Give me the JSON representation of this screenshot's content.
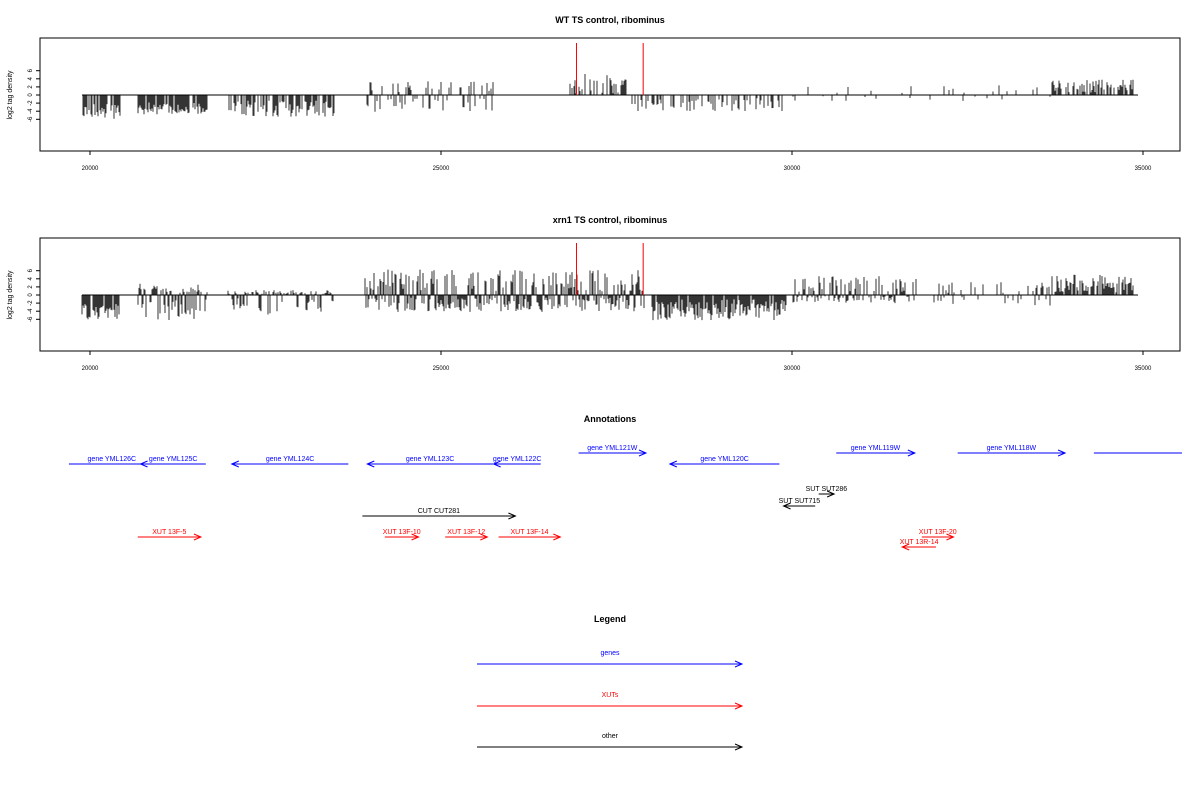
{
  "chart_data": [
    {
      "type": "bar",
      "title": "WT TS control, ribominus",
      "ylabel": "log2 tag density",
      "xlabel": "",
      "xlim": [
        20000,
        35000
      ],
      "ylim": [
        -6,
        6
      ],
      "x_ticks": [
        20000,
        25000,
        30000,
        35000
      ],
      "y_ticks": [
        -6,
        -4,
        -2,
        0,
        2,
        4,
        6
      ],
      "grid": false,
      "highlight_positions": [
        26930,
        27880
      ],
      "highlight_color": "#ff0000",
      "bar_color": "#000000",
      "segments": [
        {
          "x0": 19880,
          "x1": 20440,
          "ymin": -6.0,
          "ymax": -2.0,
          "density": 0.7
        },
        {
          "x0": 20680,
          "x1": 21680,
          "ymin": -4.8,
          "ymax": -1.6,
          "density": 0.9
        },
        {
          "x0": 21960,
          "x1": 23480,
          "ymin": -5.4,
          "ymax": -1.4,
          "density": 0.6
        },
        {
          "x0": 23900,
          "x1": 25780,
          "ymin": -4.2,
          "ymax": 3.4,
          "density": 0.45
        },
        {
          "x0": 26780,
          "x1": 27700,
          "ymin": 0.4,
          "ymax": 5.2,
          "density": 0.5
        },
        {
          "x0": 27720,
          "x1": 29900,
          "ymin": -4.0,
          "ymax": -0.8,
          "density": 0.35
        },
        {
          "x0": 30000,
          "x1": 33700,
          "ymin": -1.8,
          "ymax": 2.6,
          "density": 0.12
        },
        {
          "x0": 33700,
          "x1": 34880,
          "ymin": 0.6,
          "ymax": 3.8,
          "density": 0.55
        }
      ]
    },
    {
      "type": "bar",
      "title": "xrn1 TS control, ribominus",
      "ylabel": "log2 tag density",
      "xlabel": "",
      "xlim": [
        20000,
        35000
      ],
      "ylim": [
        -6,
        6
      ],
      "x_ticks": [
        20000,
        25000,
        30000,
        35000
      ],
      "y_ticks": [
        -6,
        -4,
        -2,
        0,
        2,
        4,
        6
      ],
      "grid": false,
      "highlight_positions": [
        26930,
        27880
      ],
      "highlight_color": "#ff0000",
      "bar_color": "#000000",
      "segments": [
        {
          "x0": 19880,
          "x1": 20420,
          "ymin": -6.0,
          "ymax": -2.2,
          "density": 0.8
        },
        {
          "x0": 20680,
          "x1": 21680,
          "ymin": -6.4,
          "ymax": 2.8,
          "density": 0.9
        },
        {
          "x0": 21960,
          "x1": 23500,
          "ymin": -5.0,
          "ymax": 1.2,
          "density": 0.6
        },
        {
          "x0": 23900,
          "x1": 27900,
          "ymin": -4.2,
          "ymax": 6.3,
          "density": 0.95
        },
        {
          "x0": 28000,
          "x1": 29920,
          "ymin": -6.2,
          "ymax": -1.0,
          "density": 0.95
        },
        {
          "x0": 30000,
          "x1": 31800,
          "ymin": -2.0,
          "ymax": 4.8,
          "density": 0.7
        },
        {
          "x0": 31800,
          "x1": 33700,
          "ymin": -2.8,
          "ymax": 3.6,
          "density": 0.3
        },
        {
          "x0": 33700,
          "x1": 34880,
          "ymin": 0.6,
          "ymax": 5.0,
          "density": 0.75
        }
      ]
    }
  ],
  "annotations": {
    "title": "Annotations",
    "items": [
      {
        "label": "gene YML126C",
        "x0": 19700,
        "x1": 20920,
        "row": 0,
        "dir": "none",
        "color": "#0000ff"
      },
      {
        "label": "gene YML125C",
        "x0": 20720,
        "x1": 21650,
        "row": 0,
        "dir": "left",
        "color": "#0000ff"
      },
      {
        "label": "gene YML124C",
        "x0": 22020,
        "x1": 23680,
        "row": 0,
        "dir": "left",
        "color": "#0000ff"
      },
      {
        "label": "gene YML123C",
        "x0": 23950,
        "x1": 25740,
        "row": 0,
        "dir": "left",
        "color": "#0000ff"
      },
      {
        "label": "gene YML122C",
        "x0": 25750,
        "x1": 26420,
        "row": 0,
        "dir": "left",
        "color": "#0000ff"
      },
      {
        "label": "gene YML121W",
        "x0": 26960,
        "x1": 27920,
        "row": -1,
        "dir": "right",
        "color": "#0000ff"
      },
      {
        "label": "gene YML120C",
        "x0": 28260,
        "x1": 29820,
        "row": 0,
        "dir": "left",
        "color": "#0000ff"
      },
      {
        "label": "gene YML119W",
        "x0": 30630,
        "x1": 31750,
        "row": -1,
        "dir": "right",
        "color": "#0000ff"
      },
      {
        "label": "gene YML118W",
        "x0": 32360,
        "x1": 33890,
        "row": -1,
        "dir": "right",
        "color": "#0000ff"
      },
      {
        "label": "",
        "x0": 34300,
        "x1": 36000,
        "row": -1,
        "dir": "none",
        "color": "#0000ff"
      },
      {
        "label": "SUT SUT286",
        "x0": 30380,
        "x1": 30600,
        "row": 2,
        "dir": "right",
        "color": "#000000"
      },
      {
        "label": "SUT SUT715",
        "x0": 29880,
        "x1": 30330,
        "row": 3,
        "dir": "left",
        "color": "#000000"
      },
      {
        "label": "CUT CUT281",
        "x0": 23880,
        "x1": 26060,
        "row": 4,
        "dir": "right",
        "color": "#000000"
      },
      {
        "label": "XUT 13F-5",
        "x0": 20680,
        "x1": 21580,
        "row": 5,
        "dir": "right",
        "color": "#ff0000"
      },
      {
        "label": "XUT 13F-10",
        "x0": 24200,
        "x1": 24680,
        "row": 5,
        "dir": "right",
        "color": "#ff0000"
      },
      {
        "label": "XUT 13F-12",
        "x0": 25060,
        "x1": 25660,
        "row": 5,
        "dir": "right",
        "color": "#ff0000"
      },
      {
        "label": "XUT 13F-14",
        "x0": 25820,
        "x1": 26700,
        "row": 5,
        "dir": "right",
        "color": "#ff0000"
      },
      {
        "label": "XUT 13F-20",
        "x0": 31850,
        "x1": 32300,
        "row": 5,
        "dir": "right",
        "color": "#ff0000"
      },
      {
        "label": "XUT 13R-14",
        "x0": 31570,
        "x1": 32050,
        "row": 6,
        "dir": "left",
        "color": "#ff0000"
      }
    ]
  },
  "legend": {
    "title": "Legend",
    "entries": [
      {
        "label": "genes",
        "color": "#0000ff"
      },
      {
        "label": "XUTs",
        "color": "#ff0000"
      },
      {
        "label": "other",
        "color": "#000000"
      }
    ]
  }
}
